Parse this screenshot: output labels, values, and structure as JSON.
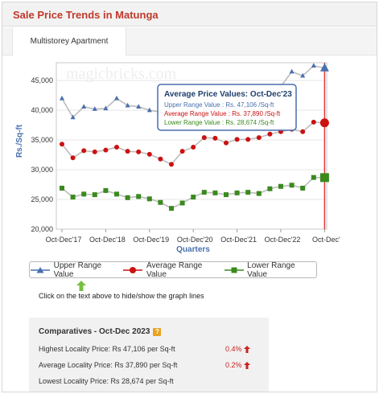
{
  "header": {
    "title": "Sale Price Trends in Matunga"
  },
  "tabs": [
    {
      "label": "Multistorey Apartment"
    }
  ],
  "watermark": "magicbricks.com",
  "colors": {
    "upper": "#4a6fae",
    "average": "#cc1111",
    "lower": "#3a8a1e",
    "title": "#c0392b"
  },
  "chart_data": {
    "type": "line",
    "xlabel": "Quarters",
    "ylabel": "Rs./Sq-ft",
    "ylim": [
      20000,
      48000
    ],
    "yticks": [
      "20,000",
      "25,000",
      "30,000",
      "35,000",
      "40,000",
      "45,000"
    ],
    "xticks": [
      "Oct-Dec'17",
      "Oct-Dec'18",
      "Oct-Dec'19",
      "Oct-Dec'20",
      "Oct-Dec'21",
      "Oct-Dec'22",
      "Oct-Dec'"
    ],
    "x": [
      "Oct-Dec'17",
      "Jan-Mar'18",
      "Apr-Jun'18",
      "Jul-Sep'18",
      "Oct-Dec'18",
      "Jan-Mar'19",
      "Apr-Jun'19",
      "Jul-Sep'19",
      "Oct-Dec'19",
      "Jan-Mar'20",
      "Apr-Jun'20",
      "Jul-Sep'20",
      "Oct-Dec'20",
      "Jan-Mar'21",
      "Apr-Jun'21",
      "Jul-Sep'21",
      "Oct-Dec'21",
      "Jan-Mar'22",
      "Apr-Jun'22",
      "Jul-Sep'22",
      "Oct-Dec'22",
      "Jan-Mar'23",
      "Apr-Jun'23",
      "Jul-Sep'23",
      "Oct-Dec'23"
    ],
    "grid": true,
    "legend_position": "bottom",
    "series": [
      {
        "name": "Upper Range Value",
        "marker": "triangle",
        "values": [
          42000,
          38800,
          40600,
          40200,
          40300,
          42000,
          40800,
          40600,
          40000,
          39700,
          39000,
          39500,
          40000,
          40000,
          40200,
          40300,
          40600,
          41000,
          41800,
          42500,
          44000,
          46500,
          45800,
          47500,
          47106
        ]
      },
      {
        "name": "Average Range Value",
        "marker": "circle",
        "values": [
          34300,
          32000,
          33200,
          33000,
          33300,
          33800,
          33100,
          33000,
          32600,
          31800,
          30900,
          33100,
          33800,
          35400,
          35300,
          34500,
          35100,
          35100,
          35400,
          36000,
          36400,
          36800,
          36400,
          38000,
          37890
        ]
      },
      {
        "name": "Lower Range Value",
        "marker": "square",
        "values": [
          26900,
          25400,
          25900,
          25800,
          26500,
          25900,
          25300,
          25500,
          25100,
          24500,
          23500,
          24400,
          25400,
          26200,
          26100,
          25800,
          26100,
          26200,
          26000,
          26800,
          27200,
          27400,
          26900,
          28700,
          28674
        ]
      }
    ],
    "tooltip": {
      "title": "Average Price Values: Oct-Dec'23",
      "upper": "Upper Range Value : Rs. 47,106 /Sq-ft",
      "average": "Average Range Value : Rs. 37,890 /Sq-ft",
      "lower": "Lower Range Value : Rs. 28,674 /Sq-ft"
    }
  },
  "hint_text": "Click on the text above to hide/show the graph lines",
  "comparatives": {
    "title": "Comparatives - Oct-Dec 2023",
    "rows": [
      {
        "label": "Highest Locality Price: Rs 47,106 per Sq-ft",
        "change": "0.4%"
      },
      {
        "label": "Average Locality Price: Rs 37,890 per Sq-ft",
        "change": "0.2%"
      },
      {
        "label": "Lowest Locality Price: Rs 28,674 per Sq-ft"
      }
    ]
  }
}
